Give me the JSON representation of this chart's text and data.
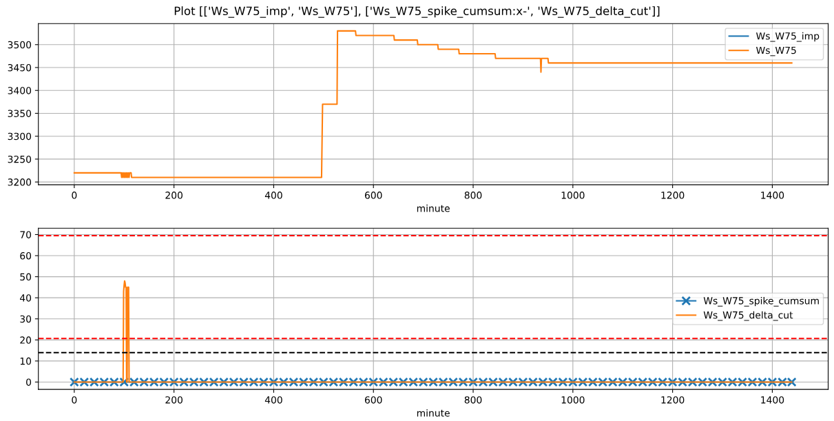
{
  "chart_data": [
    {
      "type": "line",
      "title": "Plot [['Ws_W75_imp', 'Ws_W75'], ['Ws_W75_spike_cumsum:x-', 'Ws_W75_delta_cut']]",
      "xlabel": "minute",
      "xlim": [
        -72,
        1512
      ],
      "xticks": [
        0,
        200,
        400,
        600,
        800,
        1000,
        1200,
        1400
      ],
      "ylim": [
        3194,
        3546
      ],
      "yticks": [
        3200,
        3250,
        3300,
        3350,
        3400,
        3450,
        3500
      ],
      "grid": true,
      "legend": "top right",
      "x": [
        0,
        94,
        95,
        96,
        98,
        99,
        101,
        102,
        104,
        105,
        107,
        108,
        110,
        111,
        114,
        115,
        496,
        498,
        527,
        528,
        564,
        565,
        641,
        642,
        688,
        689,
        729,
        730,
        771,
        772,
        844,
        845,
        935,
        936,
        937,
        950,
        951,
        1439
      ],
      "series": [
        {
          "name": "Ws_W75_imp",
          "color": "#1f77b4",
          "values": [
            null,
            null,
            null,
            null,
            null,
            null,
            null,
            null,
            null,
            null,
            null,
            null,
            null,
            null,
            null,
            null,
            null,
            null,
            null,
            null,
            null,
            null,
            null,
            null,
            null,
            null,
            null,
            null,
            null,
            null,
            null,
            null,
            null,
            null,
            null,
            null,
            null,
            null
          ]
        },
        {
          "name": "Ws_W75",
          "color": "#ff7f0e",
          "values": [
            3220,
            3220,
            3210,
            3220,
            3210,
            3220,
            3210,
            3220,
            3210,
            3220,
            3210,
            3220,
            3210,
            3220,
            3220,
            3210,
            3210,
            3370,
            3370,
            3530,
            3530,
            3520,
            3520,
            3510,
            3510,
            3500,
            3500,
            3490,
            3490,
            3480,
            3480,
            3470,
            3470,
            3440,
            3470,
            3470,
            3460,
            3460
          ]
        }
      ]
    },
    {
      "type": "line",
      "xlabel": "minute",
      "xlim": [
        -72,
        1512
      ],
      "xticks": [
        0,
        200,
        400,
        600,
        800,
        1000,
        1200,
        1400
      ],
      "ylim": [
        -3.5,
        73
      ],
      "yticks": [
        0,
        10,
        20,
        30,
        40,
        50,
        60,
        70
      ],
      "grid": true,
      "legend": "right",
      "series": [
        {
          "name": "Ws_W75_spike_cumsum",
          "color": "#1f77b4",
          "marker": "cross",
          "x": [
            0,
            20,
            40,
            60,
            80,
            100,
            120,
            140,
            160,
            180,
            200,
            220,
            240,
            260,
            280,
            300,
            320,
            340,
            360,
            380,
            400,
            420,
            440,
            460,
            480,
            500,
            520,
            540,
            560,
            580,
            600,
            620,
            640,
            660,
            680,
            700,
            720,
            740,
            760,
            780,
            800,
            820,
            840,
            860,
            880,
            900,
            920,
            940,
            960,
            980,
            1000,
            1020,
            1040,
            1060,
            1080,
            1100,
            1120,
            1140,
            1160,
            1180,
            1200,
            1220,
            1240,
            1260,
            1280,
            1300,
            1320,
            1340,
            1360,
            1380,
            1400,
            1420,
            1439
          ],
          "values": [
            0,
            0,
            0,
            0,
            0,
            0,
            0,
            0,
            0,
            0,
            0,
            0,
            0,
            0,
            0,
            0,
            0,
            0,
            0,
            0,
            0,
            0,
            0,
            0,
            0,
            0,
            0,
            0,
            0,
            0,
            0,
            0,
            0,
            0,
            0,
            0,
            0,
            0,
            0,
            0,
            0,
            0,
            0,
            0,
            0,
            0,
            0,
            0,
            0,
            0,
            0,
            0,
            0,
            0,
            0,
            0,
            0,
            0,
            0,
            0,
            0,
            0,
            0,
            0,
            0,
            0,
            0,
            0,
            0,
            0,
            0,
            0,
            0
          ]
        },
        {
          "name": "Ws_W75_delta_cut",
          "color": "#ff7f0e",
          "x": [
            0,
            98,
            99,
            100,
            101,
            102,
            103,
            104,
            105,
            106,
            107,
            108,
            109,
            110,
            1439
          ],
          "values": [
            0,
            0,
            43,
            46,
            48,
            47,
            45,
            45,
            0,
            0,
            45,
            45,
            45,
            0,
            0
          ]
        }
      ],
      "ref_lines": [
        {
          "axis": "y",
          "value": 69.5,
          "color": "#ff0000",
          "line_style": "dashed"
        },
        {
          "axis": "y",
          "value": 20.7,
          "color": "#ff0000",
          "line_style": "dashed"
        },
        {
          "axis": "y",
          "value": 14,
          "color": "#000000",
          "line_style": "dashed"
        }
      ]
    }
  ]
}
